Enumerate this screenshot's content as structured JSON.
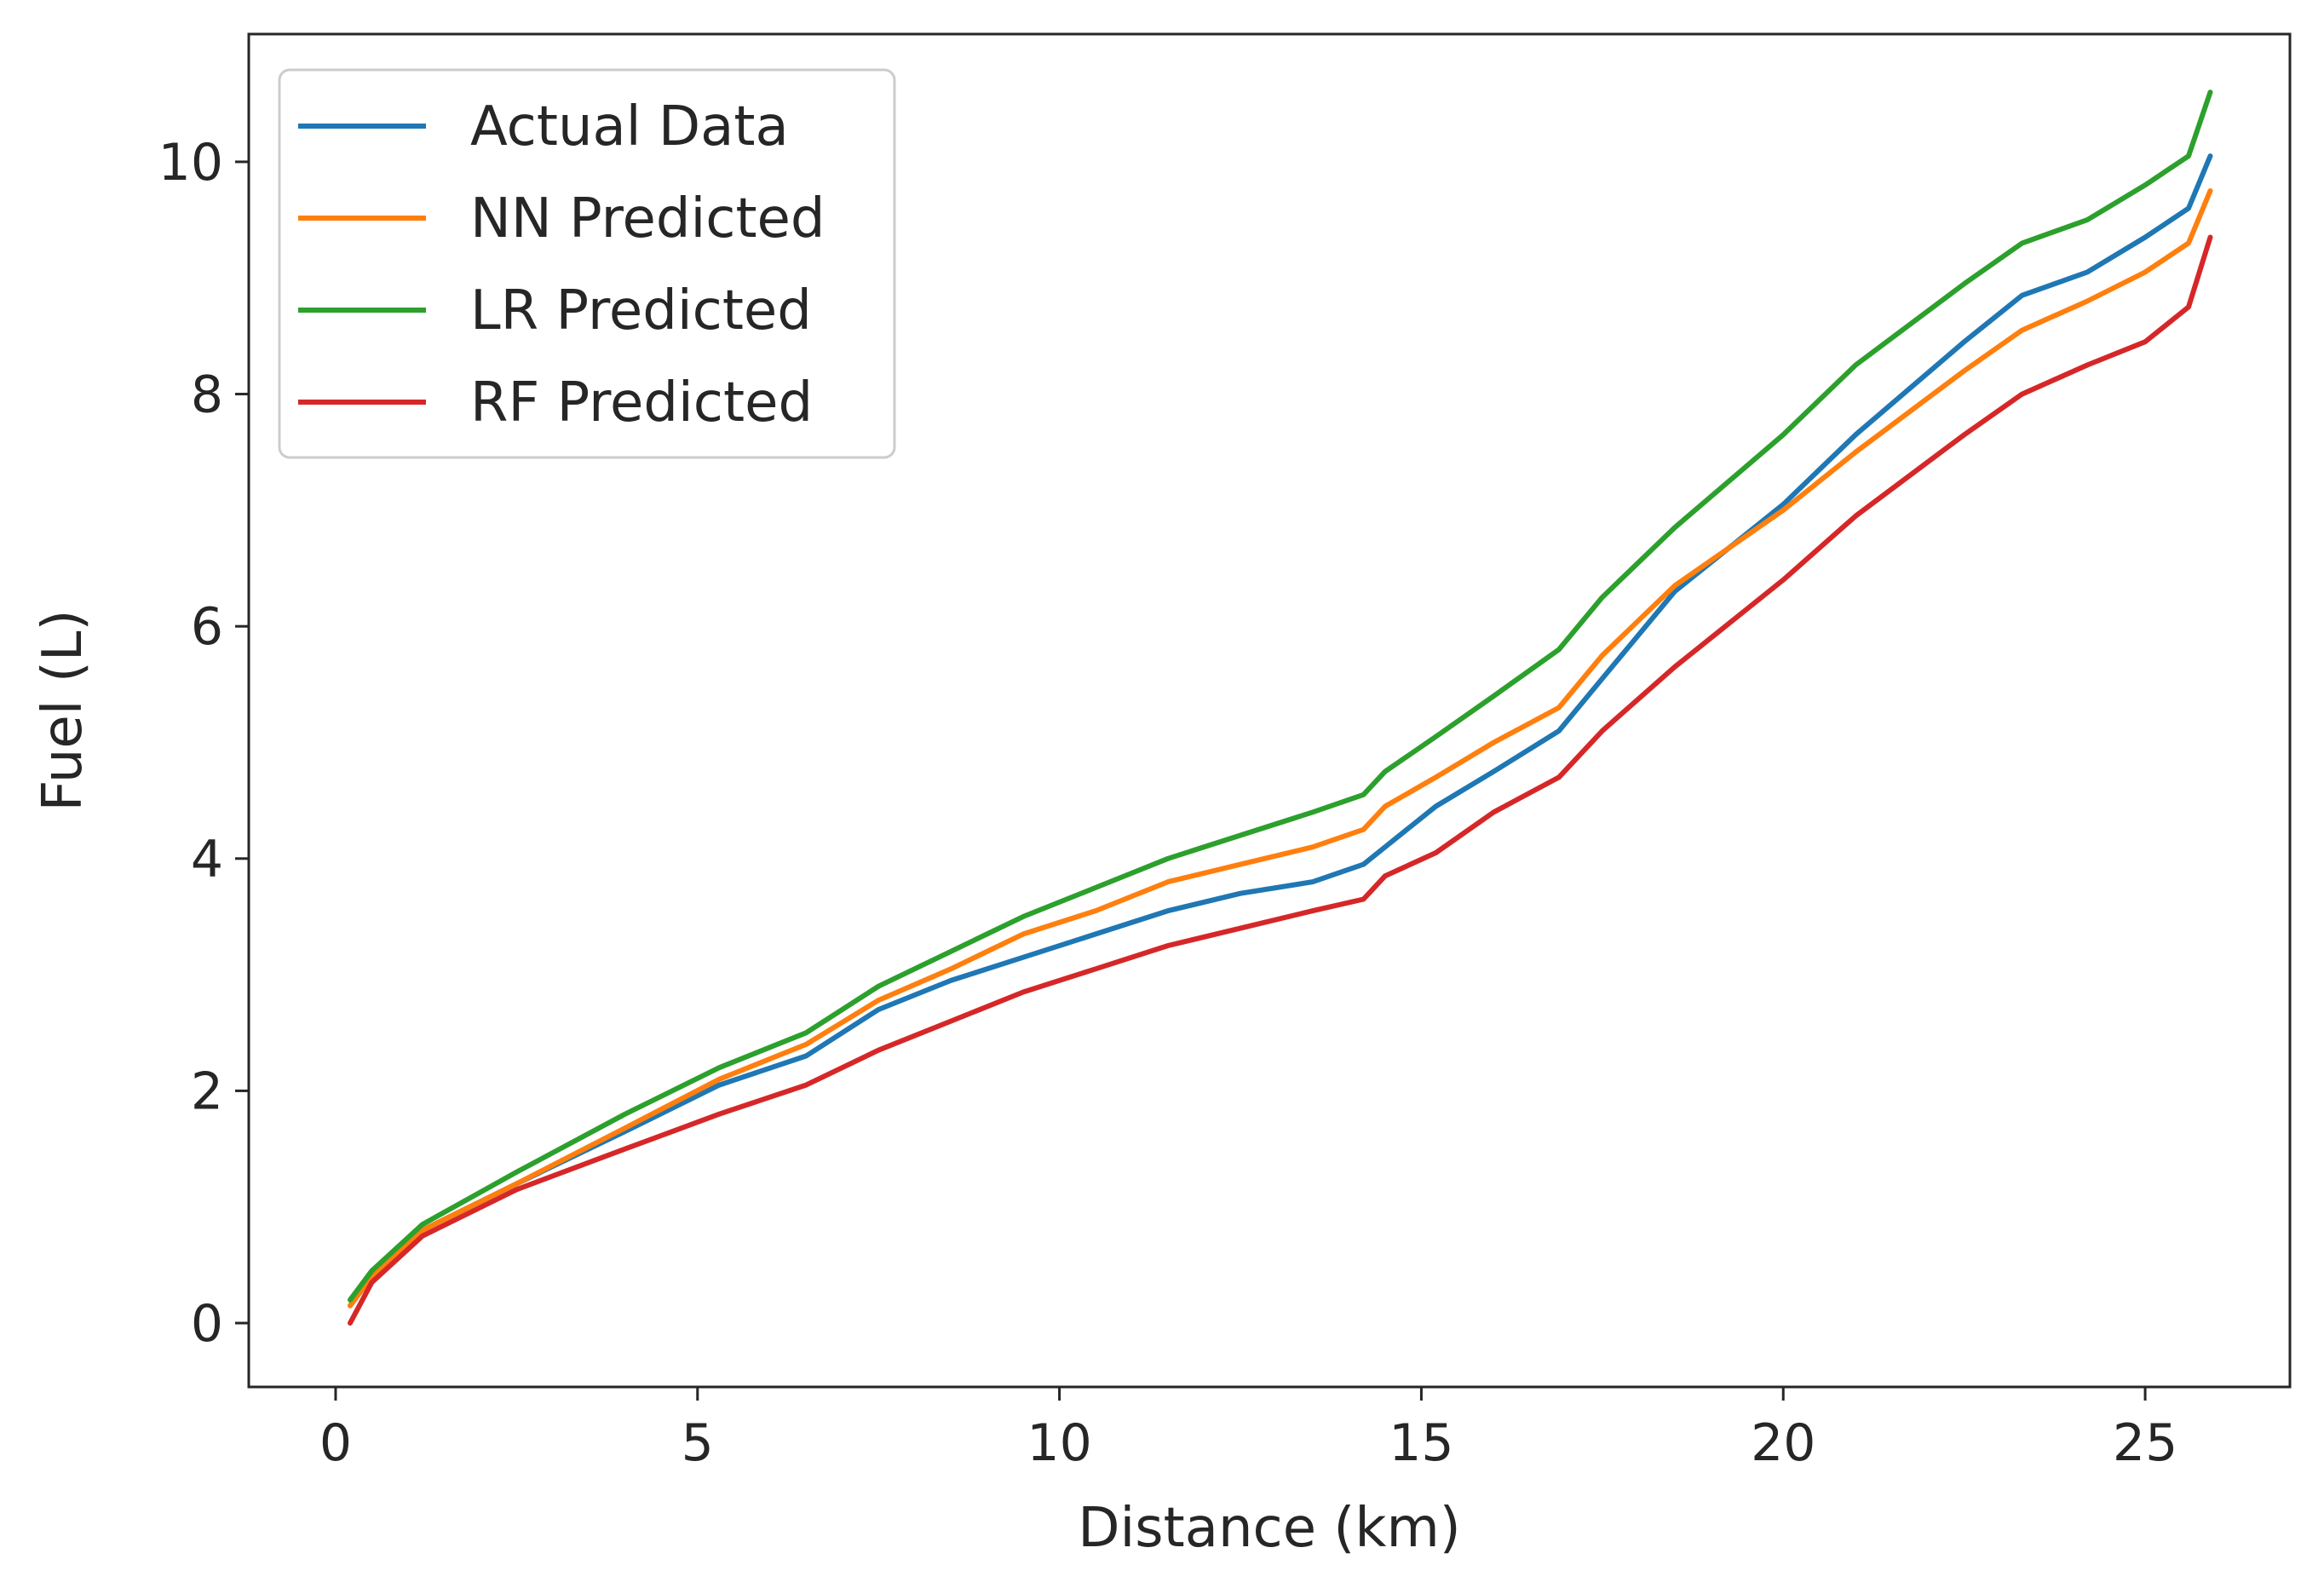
{
  "chart_data": {
    "type": "line",
    "title": "",
    "xlabel": "Distance (km)",
    "ylabel": "Fuel (L)",
    "xlim": [
      -1.2,
      27.0
    ],
    "ylim": [
      -0.55,
      11.1
    ],
    "xticks": [
      0,
      5,
      10,
      15,
      20,
      25
    ],
    "yticks": [
      0,
      2,
      4,
      6,
      8,
      10
    ],
    "xtick_labels": [
      "0",
      "5",
      "10",
      "15",
      "20",
      "25"
    ],
    "ytick_labels": [
      "0",
      "2",
      "4",
      "6",
      "8",
      "10"
    ],
    "grid": false,
    "legend_position": "top-left",
    "series": [
      {
        "name": "Actual Data",
        "color": "#1f77b4",
        "x": [
          0.2,
          0.5,
          1.2,
          2.5,
          4.0,
          5.3,
          6.5,
          7.5,
          8.5,
          9.5,
          10.5,
          11.5,
          12.5,
          13.5,
          14.2,
          14.5,
          15.2,
          16.0,
          16.9,
          17.5,
          18.5,
          20.0,
          21.0,
          22.5,
          23.3,
          24.2,
          25.0,
          25.6,
          25.9
        ],
        "values": [
          0.15,
          0.4,
          0.8,
          1.2,
          1.65,
          2.05,
          2.3,
          2.7,
          2.95,
          3.15,
          3.35,
          3.55,
          3.7,
          3.8,
          3.95,
          4.1,
          4.45,
          4.75,
          5.1,
          5.55,
          6.3,
          7.05,
          7.65,
          8.45,
          8.85,
          9.05,
          9.35,
          9.6,
          10.05
        ]
      },
      {
        "name": "NN Predicted",
        "color": "#ff7f0e",
        "x": [
          0.2,
          0.5,
          1.2,
          2.5,
          4.0,
          5.3,
          6.5,
          7.5,
          8.5,
          9.5,
          10.5,
          11.5,
          12.5,
          13.5,
          14.2,
          14.5,
          15.2,
          16.0,
          16.9,
          17.5,
          18.5,
          20.0,
          21.0,
          22.5,
          23.3,
          24.2,
          25.0,
          25.6,
          25.9
        ],
        "values": [
          0.15,
          0.4,
          0.8,
          1.2,
          1.68,
          2.1,
          2.4,
          2.78,
          3.05,
          3.35,
          3.55,
          3.8,
          3.95,
          4.1,
          4.25,
          4.45,
          4.7,
          5.0,
          5.3,
          5.75,
          6.35,
          7.0,
          7.5,
          8.2,
          8.55,
          8.8,
          9.05,
          9.3,
          9.75
        ]
      },
      {
        "name": "LR Predicted",
        "color": "#2ca02c",
        "x": [
          0.2,
          0.5,
          1.2,
          2.5,
          4.0,
          5.3,
          6.5,
          7.5,
          8.5,
          9.5,
          10.5,
          11.5,
          12.5,
          13.5,
          14.2,
          14.5,
          15.2,
          16.0,
          16.9,
          17.5,
          18.5,
          20.0,
          21.0,
          22.5,
          23.3,
          24.2,
          25.0,
          25.6,
          25.9
        ],
        "values": [
          0.2,
          0.45,
          0.85,
          1.3,
          1.8,
          2.2,
          2.5,
          2.9,
          3.2,
          3.5,
          3.75,
          4.0,
          4.2,
          4.4,
          4.55,
          4.75,
          5.05,
          5.4,
          5.8,
          6.25,
          6.85,
          7.65,
          8.25,
          8.95,
          9.3,
          9.5,
          9.8,
          10.05,
          10.6
        ]
      },
      {
        "name": "RF Predicted",
        "color": "#d62728",
        "x": [
          0.2,
          0.5,
          1.2,
          2.5,
          4.0,
          5.3,
          6.5,
          7.5,
          8.5,
          9.5,
          10.5,
          11.5,
          12.5,
          13.5,
          14.2,
          14.5,
          15.2,
          16.0,
          16.9,
          17.5,
          18.5,
          20.0,
          21.0,
          22.5,
          23.3,
          24.2,
          25.0,
          25.6,
          25.9
        ],
        "values": [
          0.0,
          0.35,
          0.75,
          1.15,
          1.5,
          1.8,
          2.05,
          2.35,
          2.6,
          2.85,
          3.05,
          3.25,
          3.4,
          3.55,
          3.65,
          3.85,
          4.05,
          4.4,
          4.7,
          5.1,
          5.65,
          6.4,
          6.95,
          7.65,
          8.0,
          8.25,
          8.45,
          8.75,
          9.35
        ]
      }
    ]
  }
}
